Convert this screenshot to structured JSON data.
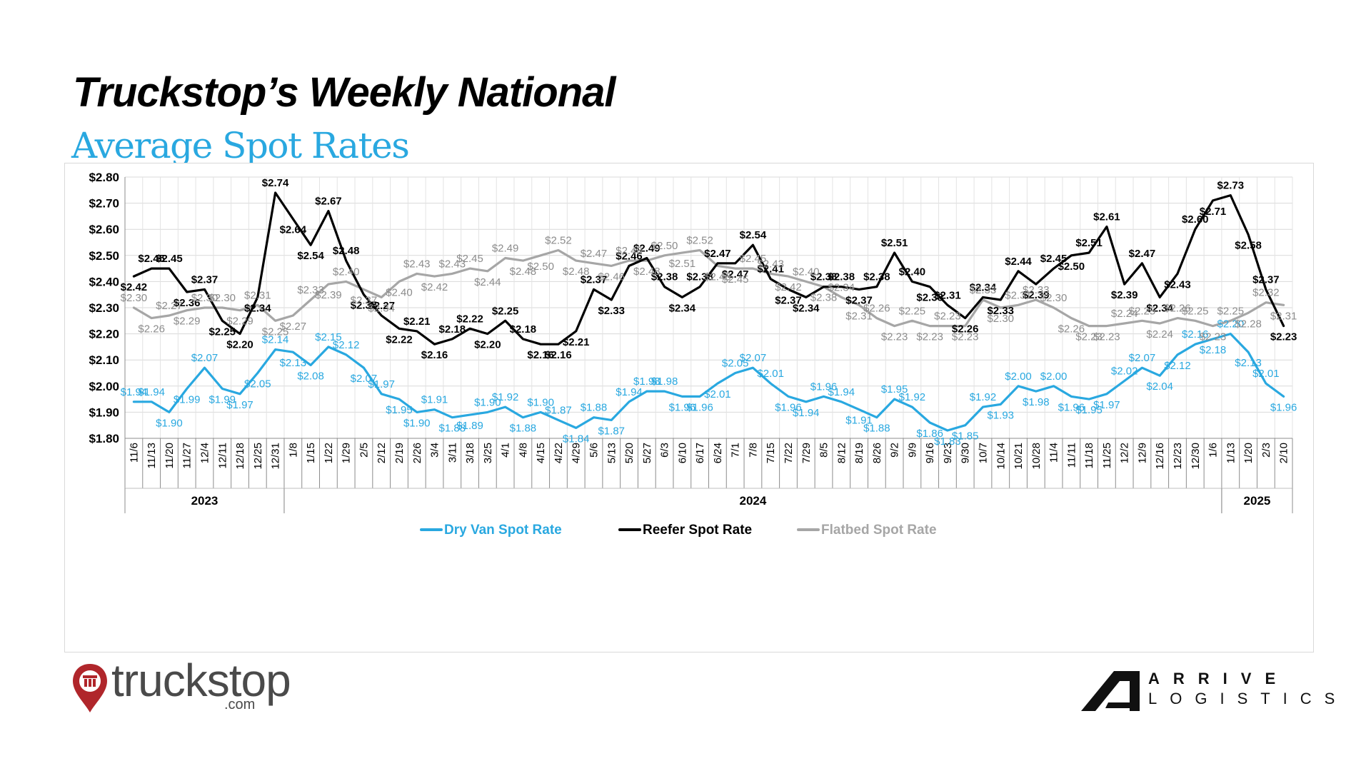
{
  "header": {
    "title": "Truckstop’s Weekly National",
    "subtitle": "Average Spot Rates"
  },
  "logos": {
    "left_name": "truckstop",
    "left_suffix": ".com",
    "right_top": "ARRIVE",
    "right_bottom": "LOGISTICS"
  },
  "colors": {
    "accent": "#29A8E0",
    "dry_van": "#29A8E0",
    "reefer": "#000000",
    "flatbed": "#A6A6A6"
  },
  "chart_data": {
    "type": "line",
    "title": "Truckstop’s Weekly National Average Spot Rates",
    "xlabel": "",
    "ylabel": "",
    "ylim": [
      1.8,
      2.8
    ],
    "yticks": [
      "$1.80",
      "$1.90",
      "$2.00",
      "$2.10",
      "$2.20",
      "$2.30",
      "$2.40",
      "$2.50",
      "$2.60",
      "$2.70",
      "$2.80"
    ],
    "grid": true,
    "legend_position": "bottom",
    "categories": [
      "11/6",
      "11/13",
      "11/20",
      "11/27",
      "12/4",
      "12/11",
      "12/18",
      "12/25",
      "12/31",
      "1/8",
      "1/15",
      "1/22",
      "1/29",
      "2/5",
      "2/12",
      "2/19",
      "2/26",
      "3/4",
      "3/11",
      "3/18",
      "3/25",
      "4/1",
      "4/8",
      "4/15",
      "4/22",
      "4/29",
      "5/6",
      "5/13",
      "5/20",
      "5/27",
      "6/3",
      "6/10",
      "6/17",
      "6/24",
      "7/1",
      "7/8",
      "7/15",
      "7/22",
      "7/29",
      "8/5",
      "8/12",
      "8/19",
      "8/26",
      "9/2",
      "9/9",
      "9/16",
      "9/23",
      "9/30",
      "10/7",
      "10/14",
      "10/21",
      "10/28",
      "11/4",
      "11/11",
      "11/18",
      "11/25",
      "12/2",
      "12/9",
      "12/16",
      "12/23",
      "12/30",
      "1/6",
      "1/13",
      "1/20",
      "2/3",
      "2/10"
    ],
    "year_groups": [
      {
        "label": "2023",
        "start": 0,
        "end": 8
      },
      {
        "label": "2024",
        "start": 9,
        "end": 61
      },
      {
        "label": "2025",
        "start": 62,
        "end": 65
      }
    ],
    "series": [
      {
        "name": "Dry Van Spot Rate",
        "color": "#29A8E0",
        "values": [
          1.94,
          1.94,
          1.9,
          1.99,
          2.07,
          1.99,
          1.97,
          2.05,
          2.14,
          2.13,
          2.08,
          2.15,
          2.12,
          2.07,
          1.97,
          1.95,
          1.9,
          1.91,
          1.88,
          1.89,
          1.9,
          1.92,
          1.88,
          1.9,
          1.87,
          1.84,
          1.88,
          1.87,
          1.94,
          1.98,
          1.98,
          1.96,
          1.96,
          2.01,
          2.05,
          2.07,
          2.01,
          1.96,
          1.94,
          1.96,
          1.94,
          1.91,
          1.88,
          1.95,
          1.92,
          1.86,
          1.83,
          1.85,
          1.92,
          1.93,
          2.0,
          1.98,
          2.0,
          1.96,
          1.95,
          1.97,
          2.02,
          2.07,
          2.04,
          2.12,
          2.16,
          2.18,
          2.2,
          2.13,
          2.01,
          1.96
        ]
      },
      {
        "name": "Reefer Spot Rate",
        "color": "#000000",
        "values": [
          2.42,
          2.45,
          2.45,
          2.36,
          2.37,
          2.25,
          2.2,
          2.34,
          2.74,
          2.64,
          2.54,
          2.67,
          2.48,
          2.35,
          2.27,
          2.22,
          2.21,
          2.16,
          2.18,
          2.22,
          2.2,
          2.25,
          2.18,
          2.16,
          2.16,
          2.21,
          2.37,
          2.33,
          2.46,
          2.49,
          2.38,
          2.34,
          2.38,
          2.47,
          2.47,
          2.54,
          2.41,
          2.37,
          2.34,
          2.38,
          2.38,
          2.37,
          2.38,
          2.51,
          2.4,
          2.38,
          2.31,
          2.26,
          2.34,
          2.33,
          2.44,
          2.39,
          2.45,
          2.5,
          2.51,
          2.61,
          2.39,
          2.47,
          2.34,
          2.43,
          2.6,
          2.71,
          2.73,
          2.58,
          2.37,
          2.23
        ]
      },
      {
        "name": "Flatbed Spot Rate",
        "color": "#A6A6A6",
        "values": [
          2.3,
          2.26,
          2.27,
          2.29,
          2.3,
          2.3,
          2.29,
          2.31,
          2.25,
          2.27,
          2.33,
          2.39,
          2.4,
          2.37,
          2.34,
          2.4,
          2.43,
          2.42,
          2.43,
          2.45,
          2.44,
          2.49,
          2.48,
          2.5,
          2.52,
          2.48,
          2.47,
          2.46,
          2.48,
          2.48,
          2.5,
          2.51,
          2.52,
          2.46,
          2.45,
          2.45,
          2.43,
          2.42,
          2.4,
          2.38,
          2.34,
          2.31,
          2.26,
          2.23,
          2.25,
          2.23,
          2.23,
          2.23,
          2.33,
          2.3,
          2.31,
          2.33,
          2.3,
          2.26,
          2.23,
          2.23,
          2.24,
          2.25,
          2.24,
          2.26,
          2.25,
          2.23,
          2.25,
          2.28,
          2.32,
          2.31
        ]
      }
    ]
  }
}
